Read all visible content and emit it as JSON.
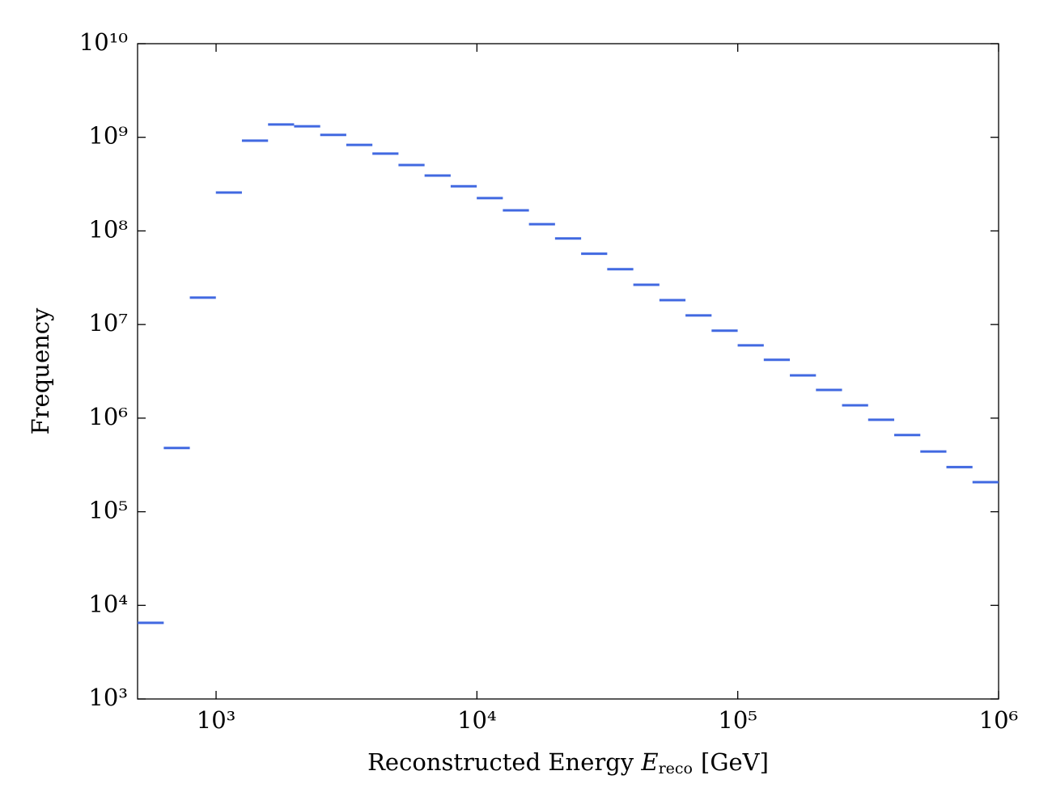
{
  "chart_data": {
    "type": "histogram",
    "x_label": [
      "Reconstructed Energy",
      "E",
      "reco",
      "[GeV]"
    ],
    "y_label": "Frequency",
    "color": "#4169e1",
    "xscale": "log",
    "yscale": "log",
    "xlim": [
      500,
      1000000
    ],
    "ylim": [
      1000,
      10000000000
    ],
    "xticks": [
      {
        "value": 1000,
        "label": "10³"
      },
      {
        "value": 10000,
        "label": "10⁴"
      },
      {
        "value": 100000,
        "label": "10⁵"
      },
      {
        "value": 1000000,
        "label": "10⁶"
      }
    ],
    "yticks": [
      {
        "value": 1000,
        "label": "10³"
      },
      {
        "value": 10000,
        "label": "10⁴"
      },
      {
        "value": 100000,
        "label": "10⁵"
      },
      {
        "value": 1000000,
        "label": "10⁶"
      },
      {
        "value": 10000000,
        "label": "10⁷"
      },
      {
        "value": 100000000,
        "label": "10⁸"
      },
      {
        "value": 1000000000,
        "label": "10⁹"
      },
      {
        "value": 10000000000,
        "label": "10¹⁰"
      }
    ],
    "bins": [
      500,
      630,
      793,
      998,
      1256,
      1582,
      1991,
      2507,
      3156,
      3974,
      5003,
      6299,
      7931,
      9985,
      12571,
      15828,
      19927,
      25089,
      31588,
      39770,
      50071,
      63040,
      79369,
      99927,
      125810,
      158397,
      199424,
      251078,
      316111,
      397988,
      501074,
      630863,
      794274,
      1000000
    ],
    "values": [
      6500,
      480000,
      19400000,
      257000000,
      920000000,
      1370000000,
      1310000000,
      1060000000,
      830000000,
      670000000,
      506000000,
      390000000,
      300000000,
      224000000,
      166000000,
      118000000,
      83000000,
      57000000,
      39000000,
      26600000,
      18200000,
      12500000,
      8600000,
      6000000,
      4200000,
      2860000,
      2000000,
      1370000,
      960000,
      660000,
      440000,
      300000,
      207000
    ]
  }
}
